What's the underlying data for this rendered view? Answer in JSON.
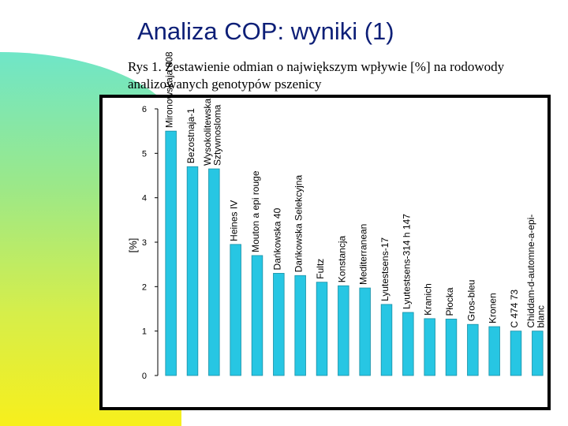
{
  "slide": {
    "title": "Analiza COP: wyniki (1)",
    "caption": "Rys 1. Zestawienie odmian o największym wpływie [%] na rodowody analizowanych genotypów pszenicy"
  },
  "colors": {
    "bar_fill": "#27c6e3",
    "bar_edge": "#1a8fa6",
    "title": "#0d1f77"
  },
  "chart_data": {
    "type": "bar",
    "ylabel": "[%]",
    "ylim": [
      0,
      6
    ],
    "yticks": [
      "0",
      "1",
      "2",
      "3",
      "4",
      "5",
      "6"
    ],
    "grid": false,
    "legend": "none",
    "categories": [
      [
        "Mironowskaja 808"
      ],
      [
        "Bezostnaja-1"
      ],
      [
        "Wysokolitewska",
        "Sztywnosloma"
      ],
      [
        "Heines IV"
      ],
      [
        "Mouton a epi rouge"
      ],
      [
        "Dańkowska 40"
      ],
      [
        "Dańkowska Selekcyjna"
      ],
      [
        "Fultz"
      ],
      [
        "Konstancja"
      ],
      [
        "Mediterranean"
      ],
      [
        "Lyutestsens-17"
      ],
      [
        "Lyutestsens-314 h 147"
      ],
      [
        "Kranich"
      ],
      [
        "Płocka"
      ],
      [
        "Gros-bleu"
      ],
      [
        "Kronen"
      ],
      [
        "C 474 73"
      ],
      [
        "Chiddam-d-automne-a-epi-",
        "blanc"
      ]
    ],
    "values": [
      5.5,
      4.7,
      4.65,
      2.95,
      2.7,
      2.3,
      2.25,
      2.1,
      2.02,
      1.97,
      1.6,
      1.42,
      1.28,
      1.27,
      1.15,
      1.1,
      1.0,
      1.0
    ]
  }
}
